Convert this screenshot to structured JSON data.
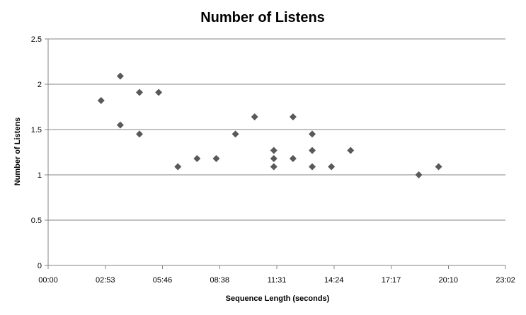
{
  "colors": {
    "background": "#ffffff",
    "gridline": "#868686",
    "axis": "#868686",
    "marker": "#595959"
  },
  "chart_data": {
    "type": "scatter",
    "title": "Number of Listens",
    "xlabel": "Sequence Length (seconds)",
    "ylabel": "Number of Listens",
    "xlim": [
      "00:00",
      "23:02"
    ],
    "ylim": [
      0,
      2.5
    ],
    "x_tick_labels": [
      "00:00",
      "02:53",
      "05:46",
      "08:38",
      "11:31",
      "14:24",
      "17:17",
      "20:10",
      "23:02"
    ],
    "y_tick_labels": [
      "0",
      "0.5",
      "1",
      "1.5",
      "2",
      "2.5"
    ],
    "grid": {
      "horizontal": true,
      "vertical": false
    },
    "legend": "none",
    "marker": "diamond",
    "points": [
      {
        "x": "02:40",
        "y": 1.82
      },
      {
        "x": "03:38",
        "y": 2.09
      },
      {
        "x": "03:38",
        "y": 1.55
      },
      {
        "x": "04:36",
        "y": 1.91
      },
      {
        "x": "04:36",
        "y": 1.45
      },
      {
        "x": "05:34",
        "y": 1.91
      },
      {
        "x": "06:32",
        "y": 1.09
      },
      {
        "x": "07:30",
        "y": 1.18
      },
      {
        "x": "08:28",
        "y": 1.18
      },
      {
        "x": "09:26",
        "y": 1.45
      },
      {
        "x": "10:24",
        "y": 1.64
      },
      {
        "x": "11:22",
        "y": 1.27
      },
      {
        "x": "11:22",
        "y": 1.18
      },
      {
        "x": "11:22",
        "y": 1.09
      },
      {
        "x": "12:20",
        "y": 1.64
      },
      {
        "x": "12:20",
        "y": 1.18
      },
      {
        "x": "13:18",
        "y": 1.45
      },
      {
        "x": "13:18",
        "y": 1.27
      },
      {
        "x": "13:18",
        "y": 1.09
      },
      {
        "x": "14:16",
        "y": 1.09
      },
      {
        "x": "15:14",
        "y": 1.27
      },
      {
        "x": "18:40",
        "y": 1.0
      },
      {
        "x": "19:40",
        "y": 1.09
      }
    ]
  }
}
